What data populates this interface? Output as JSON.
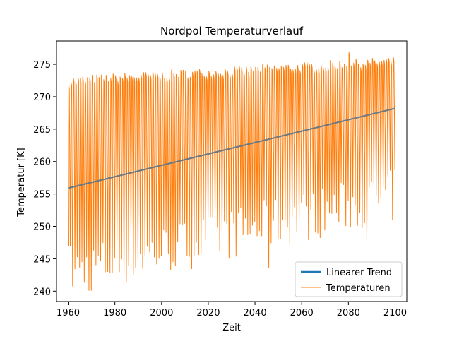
{
  "chart_data": {
    "type": "line",
    "title": "Nordpol Temperaturverlauf",
    "xlabel": "Zeit",
    "ylabel": "Temperatur [K]",
    "xlim": [
      1955,
      2105
    ],
    "ylim": [
      238.4,
      278.6
    ],
    "xticks": [
      1960,
      1980,
      2000,
      2020,
      2040,
      2060,
      2080,
      2100
    ],
    "yticks": [
      240,
      245,
      250,
      255,
      260,
      265,
      270,
      275
    ],
    "grid": false,
    "legend_position": "bottom-right",
    "series": [
      {
        "name": "Linearer Trend",
        "color": "#1f77b4",
        "style": "trend-line",
        "x": [
          1960,
          2100
        ],
        "y": [
          255.9,
          268.2
        ]
      },
      {
        "name": "Temperaturen",
        "color": "#ff7f0e",
        "style": "seasonal-oscillation",
        "x_start": 1960,
        "x_end": 2100,
        "period_years": 1,
        "summer_max_start": 272.5,
        "summer_max_end": 275.5,
        "winter_min_start": 243,
        "winter_min_end": 255,
        "notable_points": [
          {
            "x": 1960,
            "y": 247
          },
          {
            "x": 1969,
            "y": 240.1
          },
          {
            "x": 2045,
            "y": 243.6
          },
          {
            "x": 2080,
            "y": 276.8
          },
          {
            "x": 2087,
            "y": 247.7
          },
          {
            "x": 2098,
            "y": 251
          }
        ]
      }
    ]
  }
}
